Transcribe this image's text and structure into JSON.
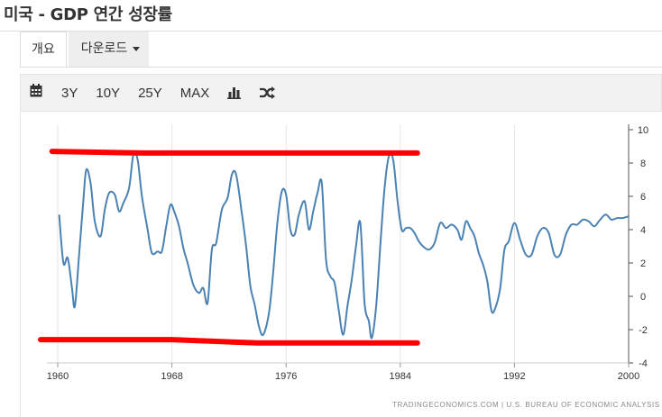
{
  "header": {
    "title": "미국 - GDP 연간 성장률"
  },
  "tabs": [
    {
      "label": "개요"
    },
    {
      "label": "다운로드"
    }
  ],
  "toolbar": {
    "icons": [
      "calendar-icon",
      "bar-chart-icon",
      "shuffle-icon"
    ],
    "ranges": [
      "3Y",
      "10Y",
      "25Y",
      "MAX"
    ]
  },
  "footer": {
    "source": "TRADINGECONOMICS.COM | U.S. BUREAU OF ECONOMIC ANALYSIS"
  },
  "colors": {
    "line": "#4a82b4",
    "annotation": "#ff0000",
    "grid": "#e6e6e6"
  },
  "chart_data": {
    "type": "line",
    "title": "",
    "xlabel": "",
    "ylabel": "",
    "xlim": [
      1960,
      2000
    ],
    "ylim": [
      -4,
      10
    ],
    "x_ticks": [
      1960,
      1968,
      1976,
      1984,
      1992,
      2000
    ],
    "y_ticks": [
      10,
      8,
      6,
      4,
      2,
      0,
      -2,
      -4
    ],
    "grid": "vertical",
    "y_axis_position": "right",
    "series": [
      {
        "name": "",
        "x": [
          1960.1,
          1960.4,
          1960.7,
          1961.0,
          1961.2,
          1961.5,
          1961.8,
          1962.0,
          1962.3,
          1962.6,
          1963.0,
          1963.3,
          1963.6,
          1964.0,
          1964.3,
          1964.6,
          1965.0,
          1965.3,
          1965.6,
          1965.9,
          1966.3,
          1966.6,
          1967.0,
          1967.3,
          1967.6,
          1967.9,
          1968.2,
          1968.5,
          1968.8,
          1969.1,
          1969.5,
          1969.9,
          1970.2,
          1970.5,
          1970.8,
          1971.1,
          1971.5,
          1971.9,
          1972.2,
          1972.5,
          1972.9,
          1973.2,
          1973.5,
          1973.8,
          1974.1,
          1974.4,
          1974.8,
          1975.1,
          1975.4,
          1975.7,
          1976.0,
          1976.3,
          1976.6,
          1976.9,
          1977.3,
          1977.6,
          1977.9,
          1978.2,
          1978.5,
          1978.8,
          1979.1,
          1979.4,
          1979.7,
          1980.0,
          1980.3,
          1980.6,
          1980.9,
          1981.2,
          1981.5,
          1981.8,
          1982.0,
          1982.3,
          1982.6,
          1982.9,
          1983.2,
          1983.5,
          1983.8,
          1984.1,
          1984.4,
          1984.7,
          1985.0,
          1985.3,
          1985.6,
          1986.0,
          1986.4,
          1986.8,
          1987.2,
          1987.6,
          1988.0,
          1988.3,
          1988.6,
          1988.9,
          1989.2,
          1989.5,
          1989.8,
          1990.1,
          1990.4,
          1990.7,
          1991.0,
          1991.3,
          1991.6,
          1992.0,
          1992.4,
          1992.8,
          1993.2,
          1993.6,
          1994.0,
          1994.4,
          1994.8,
          1995.2,
          1995.6,
          1996.0,
          1996.4,
          1996.8,
          1997.2,
          1997.6,
          1998.0,
          1998.4,
          1998.8,
          1999.2,
          1999.6,
          2000.0
        ],
        "y": [
          4.9,
          2.0,
          2.3,
          0.5,
          -0.6,
          2.5,
          5.8,
          7.6,
          6.8,
          4.5,
          3.6,
          5.2,
          6.2,
          6.1,
          5.1,
          5.6,
          6.5,
          8.5,
          8.2,
          6.0,
          4.0,
          2.6,
          2.7,
          2.7,
          4.2,
          5.5,
          5.0,
          4.2,
          2.9,
          2.0,
          0.7,
          0.2,
          0.5,
          -0.4,
          2.8,
          3.2,
          5.2,
          5.9,
          7.3,
          7.3,
          5.0,
          3.0,
          0.6,
          -0.5,
          -1.8,
          -2.3,
          -1.0,
          1.5,
          4.5,
          6.3,
          6.1,
          4.0,
          3.7,
          4.9,
          5.7,
          4.0,
          5.1,
          6.2,
          6.8,
          2.2,
          1.2,
          0.8,
          -0.9,
          -2.3,
          -0.6,
          1.0,
          3.0,
          4.4,
          -0.4,
          -1.5,
          -2.5,
          -0.7,
          3.0,
          6.5,
          8.4,
          8.2,
          5.8,
          4.0,
          4.1,
          4.1,
          3.8,
          3.3,
          3.0,
          2.8,
          3.2,
          4.4,
          4.1,
          4.3,
          4.0,
          3.4,
          4.5,
          4.1,
          3.6,
          2.6,
          1.9,
          0.9,
          -0.9,
          -0.6,
          0.5,
          2.8,
          3.3,
          4.4,
          3.4,
          2.5,
          2.5,
          3.6,
          4.1,
          3.8,
          2.5,
          2.5,
          3.7,
          4.3,
          4.3,
          4.6,
          4.5,
          4.2,
          4.6,
          4.9,
          4.6,
          4.7,
          4.7,
          4.8
        ]
      }
    ],
    "annotations": [
      {
        "type": "freehand-line",
        "points": [
          [
            1959.6,
            8.7
          ],
          [
            1966,
            8.6
          ],
          [
            1985.2,
            8.6
          ]
        ]
      },
      {
        "type": "freehand-line",
        "points": [
          [
            1958.8,
            -2.6
          ],
          [
            1968,
            -2.6
          ],
          [
            1974,
            -2.8
          ],
          [
            1985.2,
            -2.8
          ]
        ]
      }
    ]
  }
}
